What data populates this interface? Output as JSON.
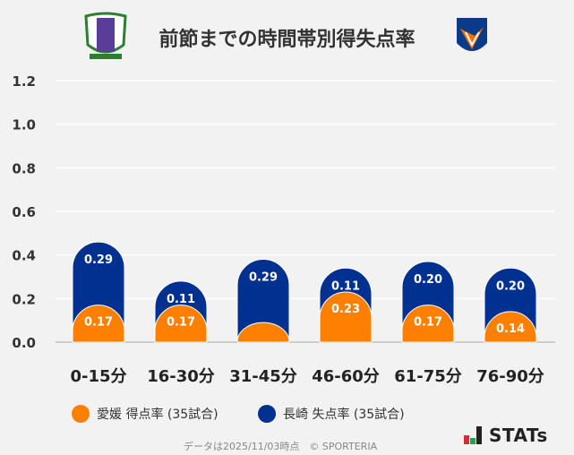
{
  "title": "前節までの時間帯別得失点率",
  "logos": {
    "left": "EFC",
    "right": "V-VAREN"
  },
  "chart_data": {
    "type": "bar",
    "stacked": true,
    "title": "前節までの時間帯別得失点率",
    "categories": [
      "0-15分",
      "16-30分",
      "31-45分",
      "46-60分",
      "61-75分",
      "76-90分"
    ],
    "series": [
      {
        "name": "愛媛 得点率 (35試合)",
        "color": "#ff8000",
        "values": [
          0.17,
          0.17,
          0.09,
          0.23,
          0.17,
          0.14
        ],
        "labels": [
          "0.17",
          "0.17",
          "",
          "0.23",
          "0.17",
          "0.14"
        ]
      },
      {
        "name": "長崎 失点率 (35試合)",
        "color": "#003090",
        "values": [
          0.29,
          0.11,
          0.29,
          0.11,
          0.2,
          0.2
        ],
        "labels": [
          "0.29",
          "0.11",
          "0.29",
          "0.11",
          "0.20",
          "0.20"
        ]
      }
    ],
    "ylim": [
      0,
      1.2
    ],
    "yticks": [
      "0.0",
      "0.2",
      "0.4",
      "0.6",
      "0.8",
      "1.0",
      "1.2"
    ],
    "grid": true,
    "legend": "bottom"
  },
  "footer": "データは2025/11/03時点　© SPORTERIA",
  "brand": "STATs"
}
